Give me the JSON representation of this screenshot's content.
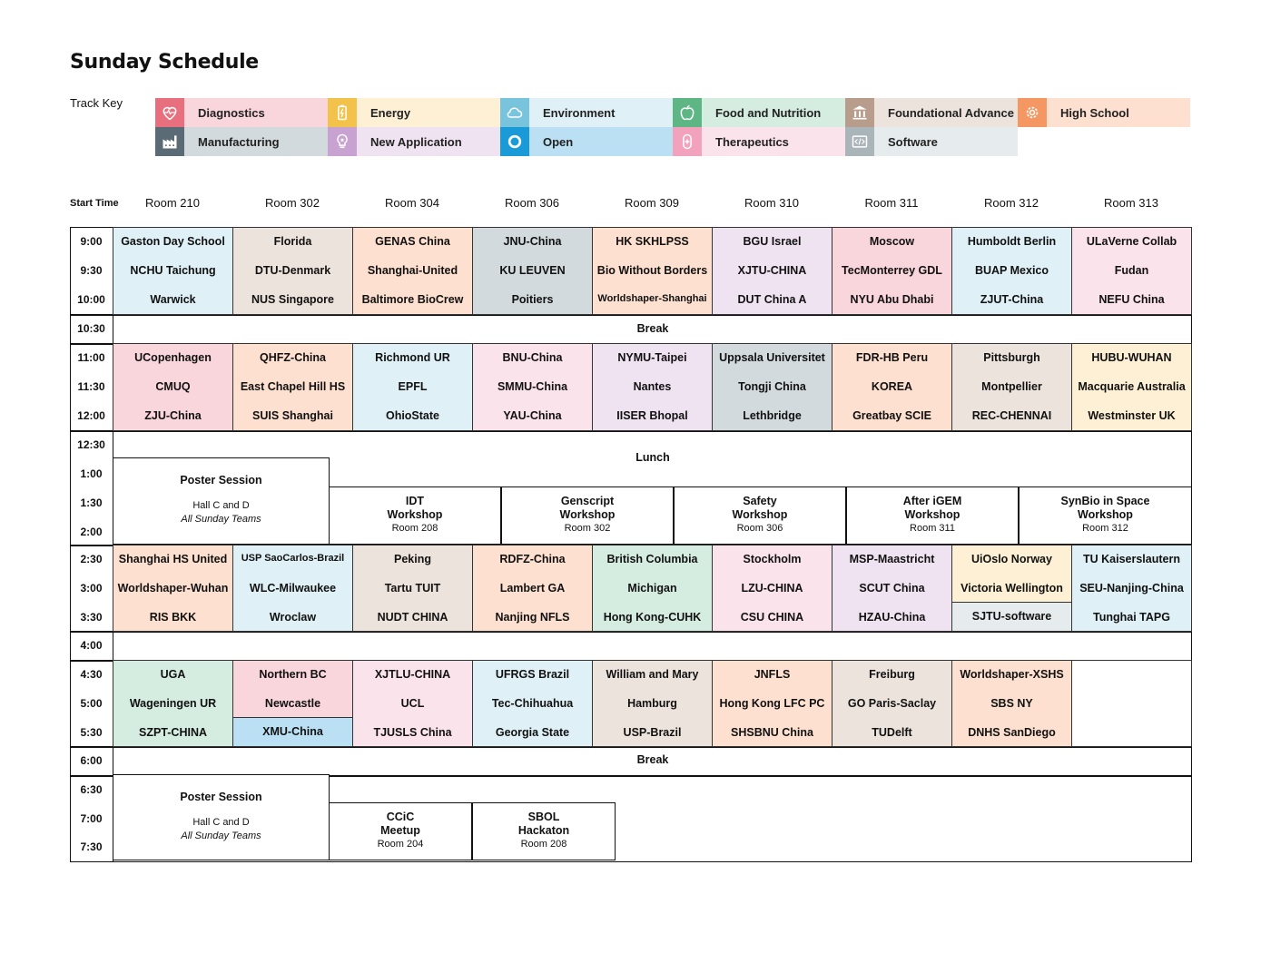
{
  "title": "Sunday Schedule",
  "track_key_label": "Track Key",
  "tracks": [
    {
      "name": "Diagnostics",
      "icon": "heart-pulse-icon",
      "icon_color": "#e8707e",
      "bg": "#f9d5dc"
    },
    {
      "name": "Energy",
      "icon": "battery-icon",
      "icon_color": "#f2c24a",
      "bg": "#fdf0d4"
    },
    {
      "name": "Environment",
      "icon": "cloud-icon",
      "icon_color": "#78c4dd",
      "bg": "#dff0f6"
    },
    {
      "name": "Food and Nutrition",
      "icon": "apple-icon",
      "icon_color": "#5fb685",
      "bg": "#d5ece0"
    },
    {
      "name": "Foundational Advance",
      "icon": "pillars-icon",
      "icon_color": "#b89c8c",
      "bg": "#ede3dd"
    },
    {
      "name": "High School",
      "icon": "gear-icon",
      "icon_color": "#f59762",
      "bg": "#fde0d0"
    },
    {
      "name": "Manufacturing",
      "icon": "factory-icon",
      "icon_color": "#5b6b75",
      "bg": "#d3dadd"
    },
    {
      "name": "New Application",
      "icon": "lightbulb-icon",
      "icon_color": "#c8a2d0",
      "bg": "#f0e3f1"
    },
    {
      "name": "Open",
      "icon": "ring-icon",
      "icon_color": "#1a9bd8",
      "bg": "#bbe0f3"
    },
    {
      "name": "Therapeutics",
      "icon": "plus-icon",
      "icon_color": "#f2a2bd",
      "bg": "#fbe3ec"
    },
    {
      "name": "Software",
      "icon": "code-icon",
      "icon_color": "#aab5ba",
      "bg": "#e6ebed"
    }
  ],
  "start_time_label": "Start Time",
  "rooms": [
    "Room 210",
    "Room 302",
    "Room 304",
    "Room 306",
    "Room 309",
    "Room 310",
    "Room 311",
    "Room 312",
    "Room 313"
  ],
  "times": [
    "9:00",
    "9:30",
    "10:00",
    "10:30",
    "11:00",
    "11:30",
    "12:00",
    "12:30",
    "1:00",
    "1:30",
    "2:00",
    "2:30",
    "3:00",
    "3:30",
    "4:00",
    "4:30",
    "5:00",
    "5:30",
    "6:00",
    "6:30",
    "7:00",
    "7:30"
  ],
  "blocks": [
    {
      "teams": [
        {
          "c": "env",
          "t": [
            "Gaston Day School",
            "NCHU Taichung",
            "Warwick"
          ]
        },
        {
          "c": "found",
          "t": [
            "Florida",
            "DTU-Denmark",
            "NUS Singapore"
          ]
        },
        {
          "c": "hs",
          "t": [
            "GENAS China",
            "Shanghai-United",
            "Baltimore BioCrew"
          ]
        },
        {
          "c": "manu",
          "t": [
            "JNU-China",
            "KU LEUVEN",
            "Poitiers"
          ]
        },
        {
          "c": "hs",
          "t": [
            "HK SKHLPSS",
            "Bio Without Borders",
            "Worldshaper-Shanghai"
          ]
        },
        {
          "c": "newapp",
          "t": [
            "BGU Israel",
            "XJTU-CHINA",
            "DUT China A"
          ]
        },
        {
          "c": "diag",
          "t": [
            "Moscow",
            "TecMonterrey GDL",
            "NYU Abu Dhabi"
          ]
        },
        {
          "c": "env",
          "t": [
            "Humboldt Berlin",
            "BUAP Mexico",
            "ZJUT-China"
          ]
        },
        {
          "c": "thera",
          "t": [
            "ULaVerne Collab",
            "Fudan",
            "NEFU China"
          ]
        }
      ]
    },
    {
      "teams": [
        {
          "c": "diag",
          "t": [
            "UCopenhagen",
            "CMUQ",
            "ZJU-China"
          ]
        },
        {
          "c": "hs",
          "t": [
            "QHFZ-China",
            "East Chapel Hill HS",
            "SUIS Shanghai"
          ]
        },
        {
          "c": "env",
          "t": [
            "Richmond UR",
            "EPFL",
            "OhioState"
          ]
        },
        {
          "c": "thera",
          "t": [
            "BNU-China",
            "SMMU-China",
            "YAU-China"
          ]
        },
        {
          "c": "newapp",
          "t": [
            "NYMU-Taipei",
            "Nantes",
            "IISER Bhopal"
          ]
        },
        {
          "c": "manu",
          "t": [
            "Uppsala Universitet",
            "Tongji China",
            "Lethbridge"
          ]
        },
        {
          "c": "hs",
          "t": [
            "FDR-HB Peru",
            "KOREA",
            "Greatbay SCIE"
          ]
        },
        {
          "c": "found",
          "t": [
            "Pittsburgh",
            "Montpellier",
            "REC-CHENNAI"
          ]
        },
        {
          "c": "energy",
          "t": [
            "HUBU-WUHAN",
            "Macquarie Australia",
            "Westminster UK"
          ]
        }
      ]
    },
    {
      "teams": [
        {
          "c": "hs",
          "t": [
            "Shanghai HS United",
            "Worldshaper-Wuhan",
            "RIS BKK"
          ]
        },
        {
          "c": "env",
          "t": [
            "USP SaoCarlos-Brazil",
            "WLC-Milwaukee",
            "Wroclaw"
          ]
        },
        {
          "c": "found",
          "t": [
            "Peking",
            "Tartu TUIT",
            "NUDT CHINA"
          ]
        },
        {
          "c": "hs",
          "t": [
            "RDFZ-China",
            "Lambert GA",
            "Nanjing NFLS"
          ]
        },
        {
          "c": "food",
          "t": [
            "British Columbia",
            "Michigan",
            "Hong Kong-CUHK"
          ]
        },
        {
          "c": "thera",
          "t": [
            "Stockholm",
            "LZU-CHINA",
            "CSU CHINA"
          ]
        },
        {
          "c": "newapp",
          "t": [
            "MSP-Maastricht",
            "SCUT China",
            "HZAU-China"
          ]
        },
        {
          "c": "energy",
          "t": [
            "UiOslo Norway",
            "Victoria Wellington"
          ]
        },
        {
          "c": "env",
          "t": [
            "TU Kaiserslautern",
            "SEU-Nanjing-China",
            "Tunghai TAPG"
          ]
        }
      ],
      "extra": {
        "col": 7,
        "c": "soft",
        "t": "SJTU-software"
      }
    },
    {
      "teams": [
        {
          "c": "food",
          "t": [
            "UGA",
            "Wageningen UR",
            "SZPT-CHINA"
          ]
        },
        {
          "c": "diag",
          "t": [
            "Northern BC",
            "Newcastle"
          ]
        },
        {
          "c": "thera",
          "t": [
            "XJTLU-CHINA",
            "UCL",
            "TJUSLS China"
          ]
        },
        {
          "c": "env",
          "t": [
            "UFRGS Brazil",
            "Tec-Chihuahua",
            "Georgia State"
          ]
        },
        {
          "c": "found",
          "t": [
            "William and Mary",
            "Hamburg",
            "USP-Brazil"
          ]
        },
        {
          "c": "hs",
          "t": [
            "JNFLS",
            "Hong Kong LFC PC",
            "SHSBNU China"
          ]
        },
        {
          "c": "found",
          "t": [
            "Freiburg",
            "GO Paris-Saclay",
            "TUDelft"
          ]
        },
        {
          "c": "hs",
          "t": [
            "Worldshaper-XSHS",
            "SBS NY",
            "DNHS SanDiego"
          ]
        },
        {
          "c": "none",
          "t": []
        }
      ],
      "extra": {
        "col": 1,
        "c": "open",
        "t": "XMU-China"
      }
    }
  ],
  "break1": "Break",
  "lunch": "Lunch",
  "break2": "Break",
  "poster1": {
    "title": "Poster Session",
    "place": "Hall C and D",
    "who": "All Sunday Teams"
  },
  "poster2": {
    "title": "Poster Session",
    "place": "Hall C and D",
    "who": "All Sunday Teams"
  },
  "workshops": [
    {
      "l1": "IDT",
      "l2": "Workshop",
      "room": "Room 208"
    },
    {
      "l1": "Genscript",
      "l2": "Workshop",
      "room": "Room 302"
    },
    {
      "l1": "Safety",
      "l2": "Workshop",
      "room": "Room 306"
    },
    {
      "l1": "After iGEM",
      "l2": "Workshop",
      "room": "Room 311"
    },
    {
      "l1": "SynBio in Space",
      "l2": "Workshop",
      "room": "Room 312"
    }
  ],
  "evening": [
    {
      "l1": "CCiC",
      "l2": "Meetup",
      "room": "Room 204"
    },
    {
      "l1": "SBOL",
      "l2": "Hackaton",
      "room": "Room 208"
    }
  ]
}
